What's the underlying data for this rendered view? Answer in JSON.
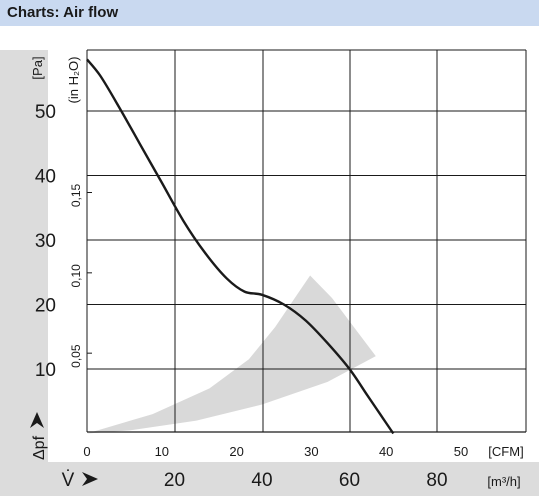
{
  "header": {
    "title": "Charts: Air flow"
  },
  "chart_data": {
    "type": "line",
    "title": "Charts: Air flow",
    "ylabel_left": "Δpf [Pa]",
    "ylabel_left_unit": "[Pa]",
    "ylabel_left_symbol": "Δpf",
    "ylabel_inner_unit": "(in H₂O)",
    "xlabel_top_unit": "[CFM]",
    "xlabel_bottom_unit": "[m³/h]",
    "xlabel_bottom_symbol": "V̇",
    "y_ticks_pa": [
      {
        "value": 50,
        "label": "50"
      },
      {
        "value": 40,
        "label": "40"
      },
      {
        "value": 30,
        "label": "30"
      },
      {
        "value": 20,
        "label": "20"
      },
      {
        "value": 10,
        "label": "10"
      }
    ],
    "y_ticks_inh2o": [
      {
        "value": 0.15,
        "label": "0,15"
      },
      {
        "value": 0.1,
        "label": "0,10"
      },
      {
        "value": 0.05,
        "label": "0,05"
      }
    ],
    "x_ticks_cfm": [
      {
        "value": 0,
        "label": "0"
      },
      {
        "value": 10,
        "label": "10"
      },
      {
        "value": 20,
        "label": "20"
      },
      {
        "value": 30,
        "label": "30"
      },
      {
        "value": 40,
        "label": "40"
      },
      {
        "value": 50,
        "label": "50"
      }
    ],
    "x_ticks_m3h": [
      {
        "value": 20,
        "label": "20"
      },
      {
        "value": 40,
        "label": "40"
      },
      {
        "value": 60,
        "label": "60"
      },
      {
        "value": 80,
        "label": "80"
      }
    ],
    "xlim_m3h": [
      0,
      80
    ],
    "ylim_pa": [
      0,
      58
    ],
    "grid": true,
    "curve_color": "#1a1a1a",
    "region_color": "#d9d9d9",
    "sidebar_color": "#dcdcdc",
    "series": [
      {
        "values": [
          {
            "x": 0,
            "y": 58
          },
          {
            "x": 3,
            "y": 55.5
          },
          {
            "x": 7,
            "y": 51
          },
          {
            "x": 12,
            "y": 45
          },
          {
            "x": 17,
            "y": 39
          },
          {
            "x": 22,
            "y": 33
          },
          {
            "x": 27,
            "y": 28
          },
          {
            "x": 32,
            "y": 24
          },
          {
            "x": 36,
            "y": 22
          },
          {
            "x": 40,
            "y": 21.5
          },
          {
            "x": 45,
            "y": 20
          },
          {
            "x": 50,
            "y": 17.5
          },
          {
            "x": 55,
            "y": 14
          },
          {
            "x": 60,
            "y": 10
          },
          {
            "x": 64,
            "y": 6
          },
          {
            "x": 67,
            "y": 3
          },
          {
            "x": 70,
            "y": 0
          }
        ]
      }
    ],
    "operating_region": {
      "upper": [
        {
          "x": 0,
          "y": 0
        },
        {
          "x": 15,
          "y": 3
        },
        {
          "x": 28,
          "y": 7
        },
        {
          "x": 37,
          "y": 11.5
        },
        {
          "x": 43,
          "y": 16.5
        },
        {
          "x": 48,
          "y": 21.5
        },
        {
          "x": 51,
          "y": 24.5
        }
      ],
      "outer": [
        {
          "x": 51,
          "y": 24.5
        },
        {
          "x": 56,
          "y": 21
        },
        {
          "x": 61,
          "y": 16.5
        },
        {
          "x": 66,
          "y": 12
        }
      ],
      "lower": [
        {
          "x": 66,
          "y": 12
        },
        {
          "x": 55,
          "y": 8
        },
        {
          "x": 40,
          "y": 4.5
        },
        {
          "x": 25,
          "y": 2
        },
        {
          "x": 10,
          "y": 0.5
        },
        {
          "x": 0,
          "y": 0
        }
      ]
    }
  }
}
